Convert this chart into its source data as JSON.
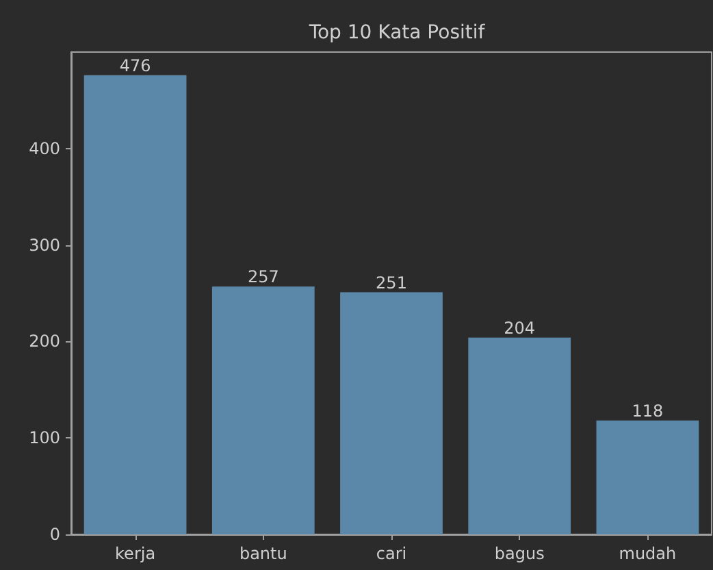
{
  "chart_data": {
    "type": "bar",
    "title": "Top 10 Kata Positif",
    "categories": [
      "kerja",
      "bantu",
      "cari",
      "bagus",
      "mudah"
    ],
    "values": [
      476,
      257,
      251,
      204,
      118
    ],
    "color": "#5b87a8",
    "ylim": [
      0,
      500
    ],
    "yticks": [
      0,
      100,
      200,
      300,
      400
    ],
    "grid": false,
    "data_labels": true
  }
}
